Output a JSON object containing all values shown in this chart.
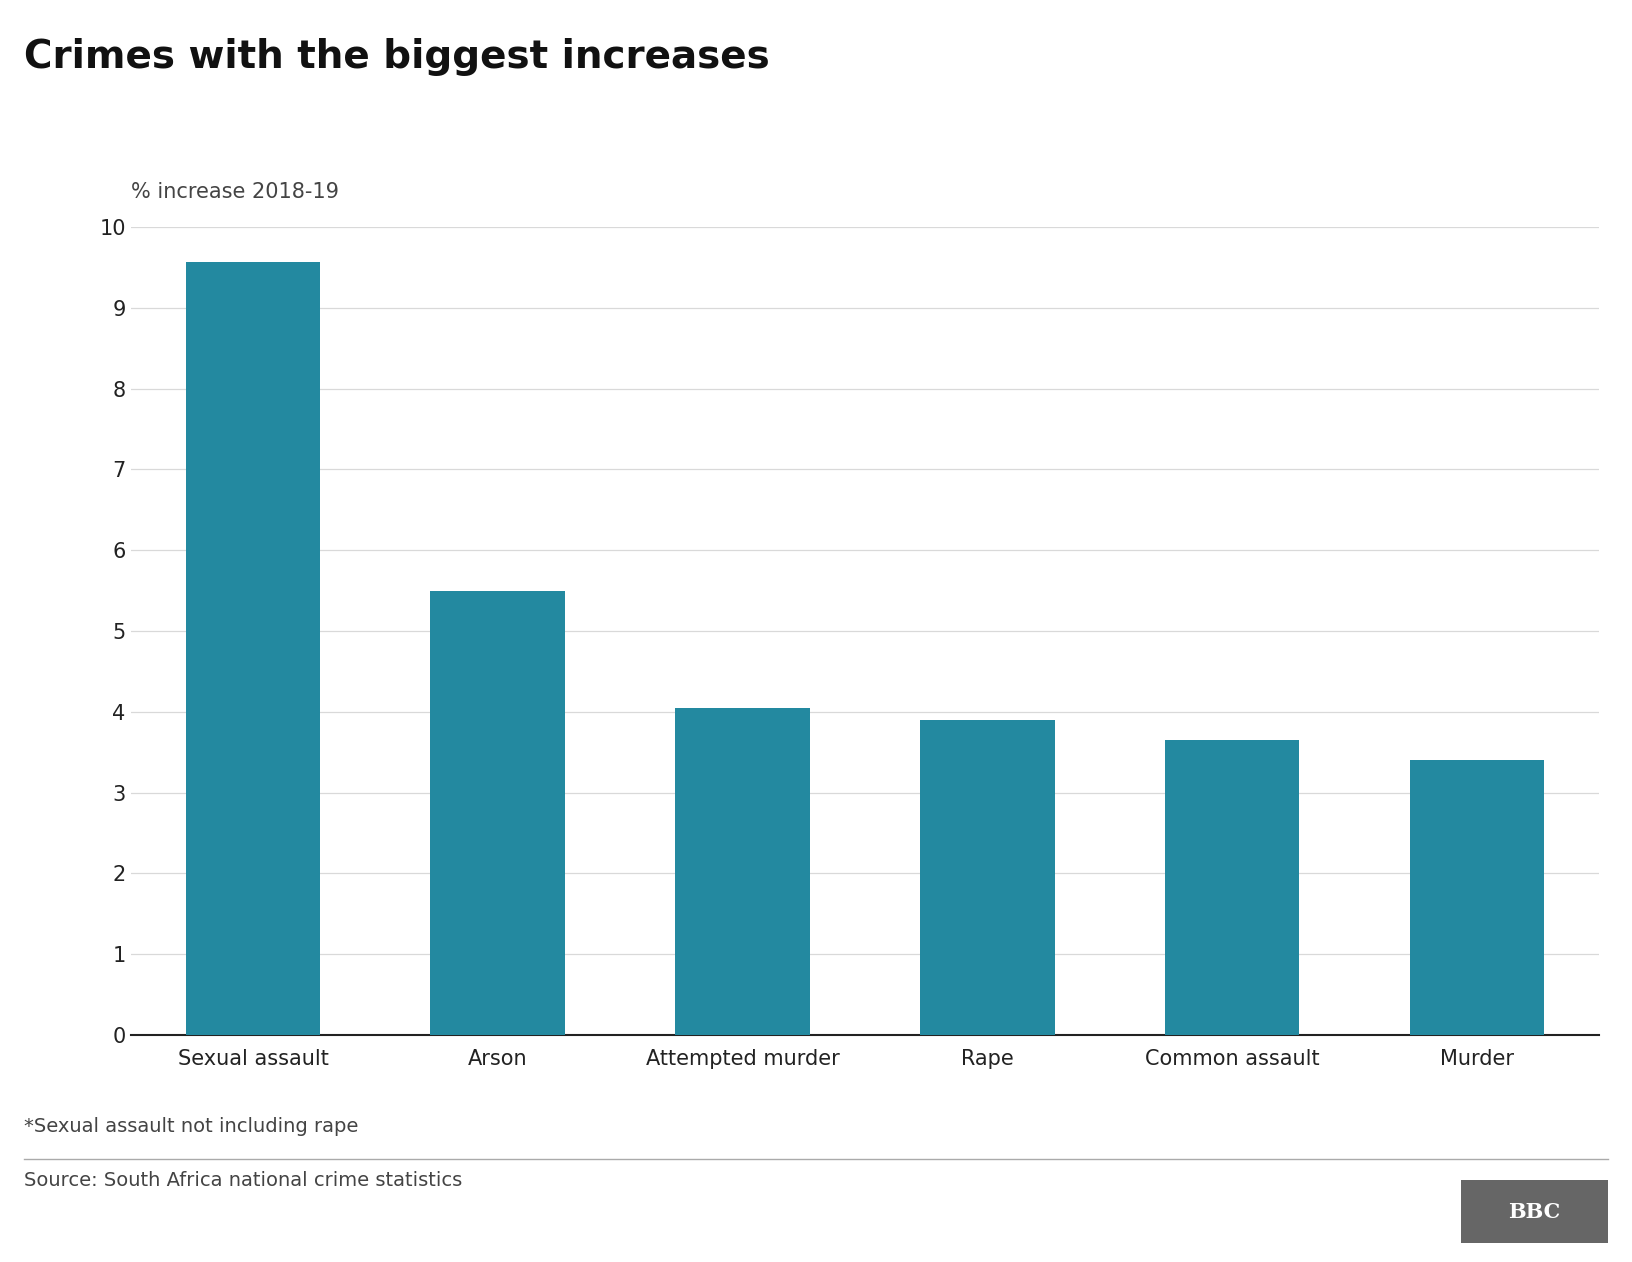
{
  "title": "Crimes with the biggest increases",
  "ylabel": "% increase 2018-19",
  "categories": [
    "Sexual assault",
    "Arson",
    "Attempted murder",
    "Rape",
    "Common assault",
    "Murder"
  ],
  "values": [
    9.57,
    5.49,
    4.05,
    3.9,
    3.65,
    3.4
  ],
  "bar_color": "#2389a0",
  "ylim": [
    0,
    10
  ],
  "yticks": [
    0,
    1,
    2,
    3,
    4,
    5,
    6,
    7,
    8,
    9,
    10
  ],
  "footnote": "*Sexual assault not including rape",
  "source": "Source: South Africa national crime statistics",
  "bbc_label": "BBC",
  "bg_color": "#ffffff",
  "grid_color": "#d9d9d9",
  "title_fontsize": 28,
  "ylabel_fontsize": 15,
  "tick_fontsize": 15,
  "xtick_fontsize": 15,
  "footnote_fontsize": 14,
  "source_fontsize": 14,
  "bar_width": 0.55
}
